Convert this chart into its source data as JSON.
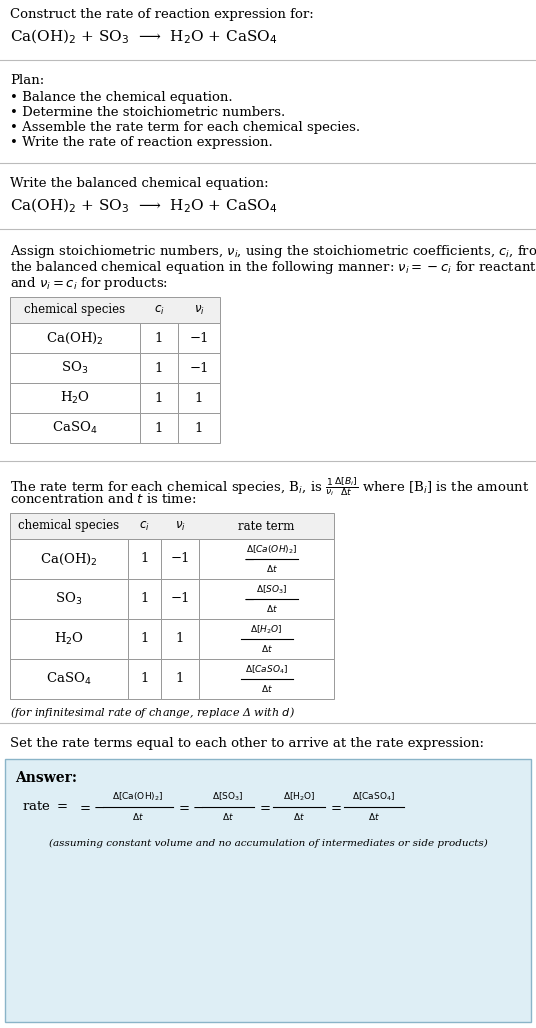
{
  "title_line1": "Construct the rate of reaction expression for:",
  "reaction_equation": "Ca(OH)$_2$ + SO$_3$  ⟶  H$_2$O + CaSO$_4$",
  "plan_header": "Plan:",
  "plan_bullets": [
    "• Balance the chemical equation.",
    "• Determine the stoichiometric numbers.",
    "• Assemble the rate term for each chemical species.",
    "• Write the rate of reaction expression."
  ],
  "balanced_header": "Write the balanced chemical equation:",
  "balanced_equation": "Ca(OH)$_2$ + SO$_3$  ⟶  H$_2$O + CaSO$_4$",
  "stoich_intro_lines": [
    "Assign stoichiometric numbers, $\\nu_i$, using the stoichiometric coefficients, $c_i$, from",
    "the balanced chemical equation in the following manner: $\\nu_i = -c_i$ for reactants",
    "and $\\nu_i = c_i$ for products:"
  ],
  "table1_headers": [
    "chemical species",
    "$c_i$",
    "$\\nu_i$"
  ],
  "table1_rows": [
    [
      "Ca(OH)$_2$",
      "1",
      "−1"
    ],
    [
      "SO$_3$",
      "1",
      "−1"
    ],
    [
      "H$_2$O",
      "1",
      "1"
    ],
    [
      "CaSO$_4$",
      "1",
      "1"
    ]
  ],
  "rate_term_intro_line1": "The rate term for each chemical species, B$_i$, is $\\frac{1}{\\nu_i}\\frac{\\Delta[B_i]}{\\Delta t}$ where [B$_i$] is the amount",
  "rate_term_intro_line2": "concentration and $t$ is time:",
  "table2_headers": [
    "chemical species",
    "$c_i$",
    "$\\nu_i$",
    "rate term"
  ],
  "table2_row_species": [
    "Ca(OH)$_2$",
    "SO$_3$",
    "H$_2$O",
    "CaSO$_4$"
  ],
  "table2_row_ci": [
    "1",
    "1",
    "1",
    "1"
  ],
  "table2_row_vi": [
    "−1",
    "−1",
    "1",
    "1"
  ],
  "table2_row_rates_neg": [
    true,
    true,
    false,
    false
  ],
  "table2_row_rate_num": [
    "\\Delta[Ca(OH)_2]",
    "\\Delta[SO_3]",
    "\\Delta[H_2O]",
    "\\Delta[CaSO_4]"
  ],
  "table2_row_rate_den": [
    "\\Delta t",
    "\\Delta t",
    "\\Delta t",
    "\\Delta t"
  ],
  "infinitesimal_note": "(for infinitesimal rate of change, replace Δ with $d$)",
  "set_equal_text": "Set the rate terms equal to each other to arrive at the rate expression:",
  "answer_label": "Answer:",
  "assumption_note": "(assuming constant volume and no accumulation of intermediates or side products)",
  "bg_color": "#ffffff",
  "answer_box_color": "#deeef5",
  "table_border_color": "#999999",
  "text_color": "#000000",
  "separator_color": "#bbbbbb"
}
